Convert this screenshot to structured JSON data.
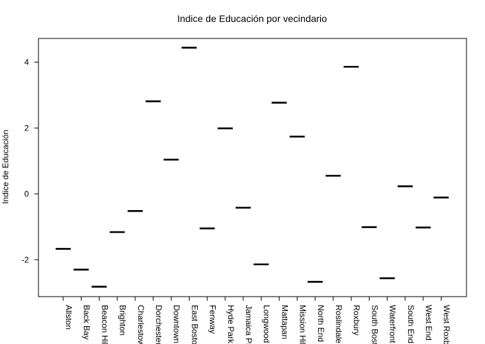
{
  "chart_data": {
    "type": "scatter",
    "marker": "horizontal-bar",
    "title": "Indice de Educación por vecindario",
    "xlabel": "",
    "ylabel": "Indice de Educación",
    "ylim": [
      -3.12,
      4.72
    ],
    "yticks": [
      -2,
      0,
      2,
      4
    ],
    "grid": false,
    "legend": "none",
    "categories": [
      "Allston",
      "Back Bay",
      "Beacon Hill",
      "Brighton",
      "Charlestown",
      "Dorchester",
      "Downtown",
      "East Boston",
      "Fenway",
      "Hyde Park",
      "Jamaica Plain",
      "Longwood",
      "Mattapan",
      "Mission Hill",
      "North End",
      "Roslindale",
      "Roxbury",
      "South Boston",
      "Waterfront",
      "South End",
      "West End",
      "West Roxbury"
    ],
    "values": [
      -1.67,
      -2.3,
      -2.82,
      -1.16,
      -0.52,
      2.81,
      1.04,
      4.44,
      -1.05,
      1.99,
      -0.42,
      -2.14,
      2.77,
      1.74,
      -2.67,
      0.55,
      3.86,
      -1.01,
      -2.56,
      0.23,
      -1.02,
      -0.11
    ],
    "colors": {
      "marks": "#000000",
      "axes": "#000000",
      "background": "#ffffff"
    }
  }
}
